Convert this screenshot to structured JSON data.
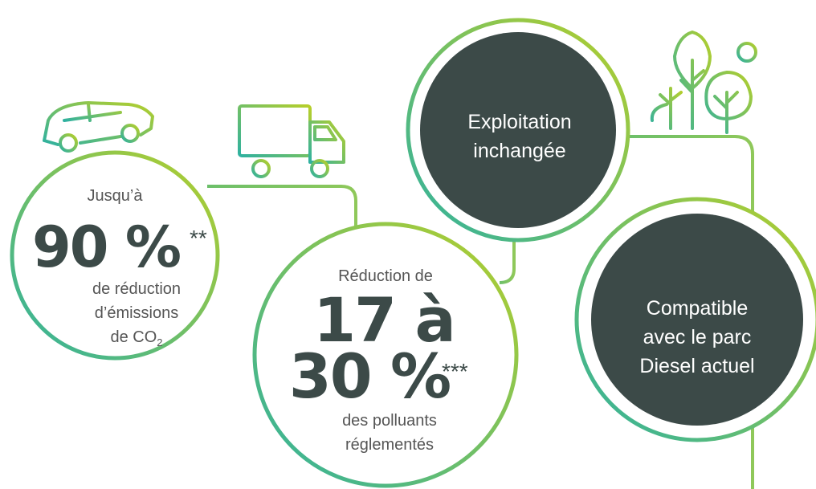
{
  "circles": [
    {
      "intro": "Jusqu’à",
      "figure": "90 %",
      "note": "**",
      "lines": [
        "de réduction",
        "d’émissions"
      ],
      "last": "de CO",
      "sub": "2"
    },
    {
      "intro": "Réduction de",
      "figure": [
        "17 à",
        "30 %"
      ],
      "note": "***",
      "lines": [
        "des polluants",
        "réglementés"
      ]
    },
    {
      "lines": [
        "Exploitation",
        "inchangée"
      ]
    },
    {
      "lines": [
        "Compatible",
        "avec le parc",
        "Diesel actuel"
      ]
    }
  ]
}
